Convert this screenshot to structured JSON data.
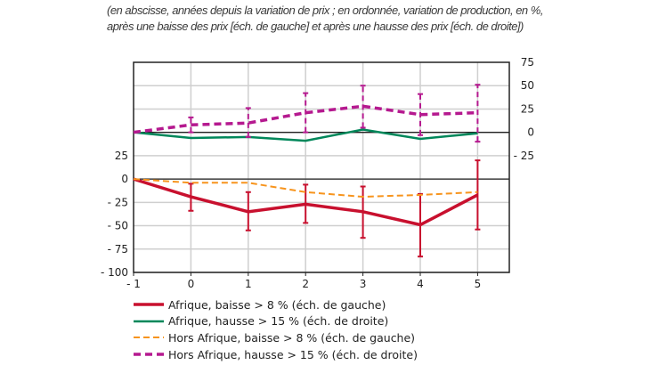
{
  "chart_data": {
    "type": "line",
    "subtitle_lines": [
      "(en abscisse, années depuis la variation de prix ; en ordonnée, variation de production, en %,",
      "après une baisse des prix [éch. de gauche] et après une hausse des prix [éch. de droite])"
    ],
    "x": [
      -1,
      0,
      1,
      2,
      3,
      4,
      5
    ],
    "x_tick_labels": [
      "- 1",
      "0",
      "1",
      "2",
      "3",
      "4",
      "5"
    ],
    "y_left": {
      "ylim": [
        -100,
        125
      ],
      "tick_values": [
        25,
        0,
        -25,
        -50,
        -75,
        -100
      ],
      "tick_labels": [
        "25",
        "0",
        "- 25",
        "- 50",
        "- 75",
        "- 100"
      ]
    },
    "y_right": {
      "ylim": [
        -150,
        75
      ],
      "tick_values": [
        75,
        50,
        25,
        0,
        -25
      ],
      "tick_labels": [
        "75",
        "50",
        "25",
        "0",
        "- 25"
      ]
    },
    "grid": true,
    "legend_placement": "bottom",
    "series": [
      {
        "name": "Afrique, baisse > 8 % (éch. de gauche)",
        "axis": "left",
        "color": "#c8102e",
        "style": "solid-thick",
        "values": [
          0,
          -19,
          -35,
          -27,
          -35,
          -49,
          -17
        ],
        "err_low": [
          null,
          -34,
          -55,
          -47,
          -63,
          -83,
          -54
        ],
        "err_high": [
          null,
          -5,
          -14,
          -6,
          -8,
          -16,
          20
        ]
      },
      {
        "name": "Afrique, hausse > 15 % (éch. de droite)",
        "axis": "right",
        "color": "#00875a",
        "style": "solid",
        "values": [
          0,
          -6,
          -5,
          -9,
          3,
          -7,
          -1
        ]
      },
      {
        "name": "Hors Afrique, baisse > 8 % (éch. de gauche)",
        "axis": "left",
        "color": "#f7941d",
        "style": "dashed",
        "values": [
          0,
          -4,
          -4,
          -14,
          -19,
          -17,
          -14
        ]
      },
      {
        "name": "Hors Afrique, hausse > 15 % (éch. de droite)",
        "axis": "right",
        "color": "#b5198f",
        "style": "dashed-thick",
        "values": [
          0,
          8,
          10,
          21,
          28,
          19,
          21
        ],
        "err_low": [
          null,
          0,
          -5,
          0,
          5,
          -3,
          -10
        ],
        "err_high": [
          null,
          16,
          26,
          42,
          50,
          41,
          51
        ]
      }
    ]
  }
}
